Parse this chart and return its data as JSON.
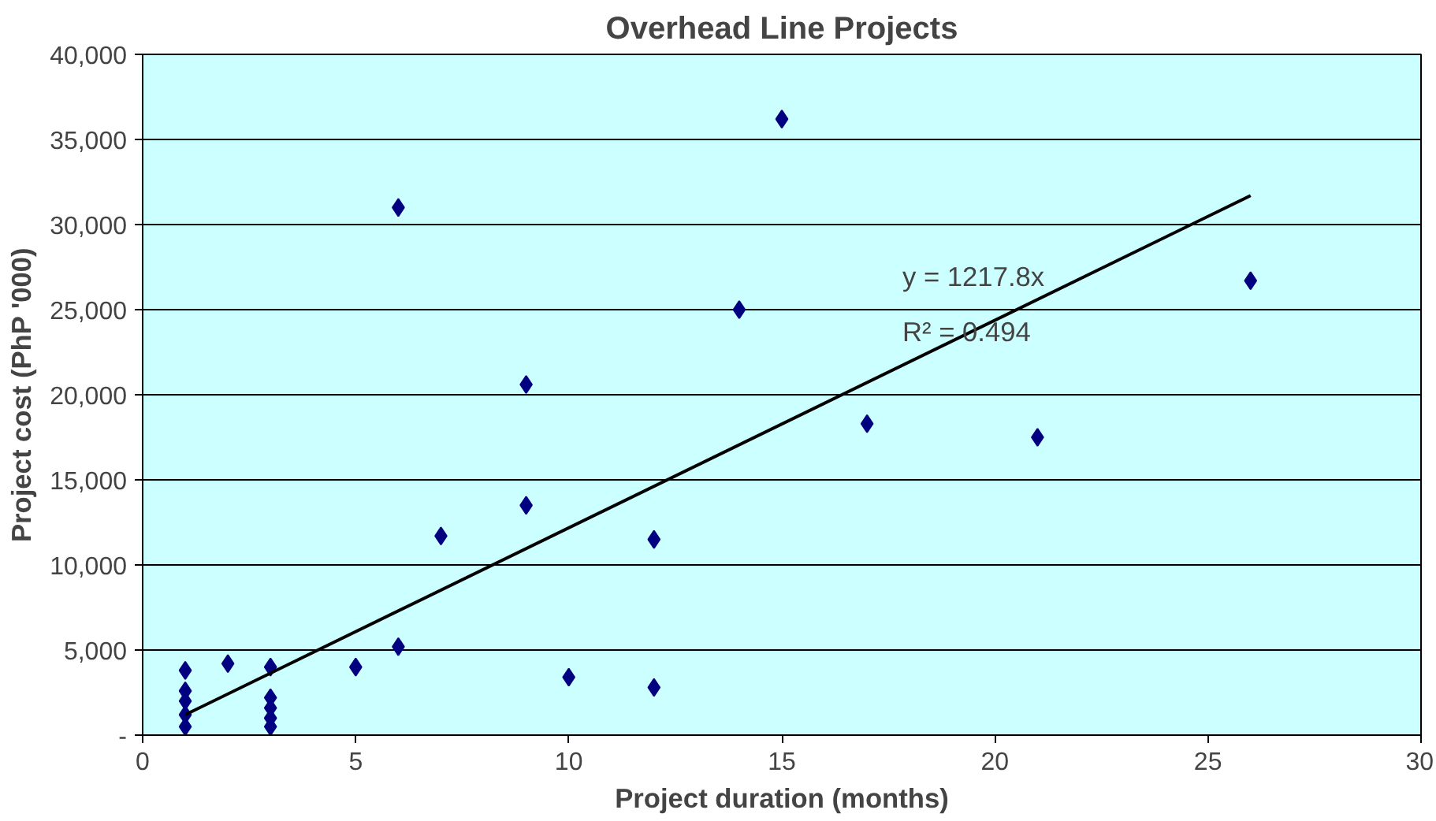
{
  "chart_data": {
    "type": "scatter",
    "title": "Overhead Line Projects",
    "xlabel": "Project duration (months)",
    "ylabel": "Project cost (PhP '000)",
    "series": [
      {
        "color": "#000080",
        "marker": "diamond",
        "x": [
          1,
          1,
          1,
          1,
          1,
          2,
          3,
          3,
          3,
          3,
          3,
          5,
          6,
          6,
          7,
          9,
          9,
          10,
          12,
          12,
          14,
          15,
          17,
          21,
          26
        ],
        "values": [
          3800,
          2600,
          2000,
          1200,
          500,
          4200,
          4000,
          2200,
          1600,
          1000,
          500,
          4000,
          5200,
          31000,
          11700,
          13500,
          20600,
          3400,
          11500,
          2800,
          25000,
          36200,
          18300,
          17500,
          26700
        ]
      },
      {
        "type": "line",
        "color": "#000000",
        "marker": "none",
        "x": [
          1,
          26
        ],
        "values": [
          1200,
          31700
        ]
      }
    ],
    "annotations": [
      "y = 1217.8x",
      "R² = 0.494"
    ],
    "xlim": [
      0,
      30
    ],
    "xticks": [
      0,
      5,
      10,
      15,
      20,
      25,
      30
    ],
    "ylim": [
      0,
      40000
    ],
    "yticks": [
      {
        "value": 0,
        "label": "-"
      },
      {
        "value": 5000,
        "label": "5,000"
      },
      {
        "value": 10000,
        "label": "10,000"
      },
      {
        "value": 15000,
        "label": "15,000"
      },
      {
        "value": 20000,
        "label": "20,000"
      },
      {
        "value": 25000,
        "label": "25,000"
      },
      {
        "value": 30000,
        "label": "30,000"
      },
      {
        "value": 35000,
        "label": "35,000"
      },
      {
        "value": 40000,
        "label": "40,000"
      }
    ],
    "grid": "y"
  }
}
